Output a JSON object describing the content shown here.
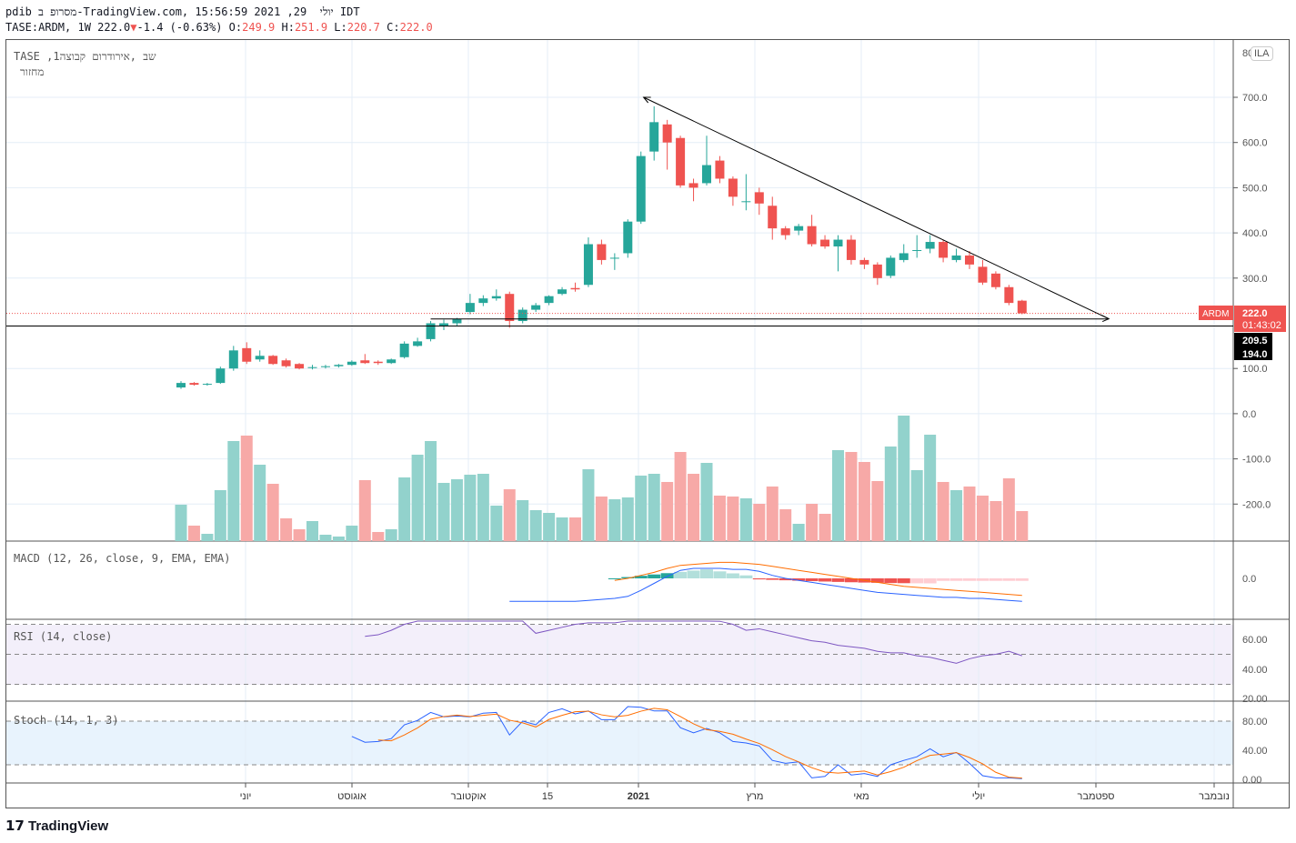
{
  "header": {
    "line1": "pdib מסרופ ב-TradingView.com, יולי  29, 2021 15:56:59 IDT",
    "symbol": "TASE:ARDM, 1W 222.0",
    "change": "-1.4 (-0.63%)",
    "o_label": "O:",
    "o": "249.9",
    "h_label": "H:",
    "h": "251.9",
    "l_label": "L:",
    "l": "220.7",
    "c_label": "C:",
    "c": "222.0"
  },
  "legend": {
    "title": "TASE ,1שב ,אירודרום קבוצה",
    "volume": "מחזור",
    "macd": "MACD (12, 26, close, 9, EMA, EMA)",
    "rsi": "RSI (14, close)",
    "stoch": "Stoch (14, 1, 3)"
  },
  "currency": "ILA",
  "price_tag": {
    "symbol": "ARDM",
    "price": "222.0",
    "countdown": "01:43:02",
    "level1": "209.5",
    "level2": "194.0"
  },
  "colors": {
    "up": "#26a69a",
    "down": "#ef5350",
    "macd": "#2962ff",
    "signal": "#ff6d00",
    "rsi": "#7e57c2",
    "stochK": "#2962ff",
    "stochD": "#ff6d00"
  },
  "logo": "TradingView",
  "chart_data": {
    "type": "candlestick",
    "price_ticks": [
      "700.0",
      "600.0",
      "500.0",
      "400.0",
      "300.0",
      "100.0",
      "0.0",
      "-100.0",
      "-200.0"
    ],
    "price_tick_values": [
      700,
      600,
      500,
      400,
      300,
      100,
      0,
      -100,
      -200
    ],
    "top_tick": "80",
    "macd_ticks": [
      "0.0"
    ],
    "rsi_ticks": [
      "60.00",
      "40.00",
      "20.00"
    ],
    "stoch_ticks": [
      "80.00",
      "40.00",
      "0.00"
    ],
    "x_labels": [
      "יוני",
      "אוגוסט",
      "אוקטובר",
      "15",
      "2021",
      "מרץ",
      "מאי",
      "יולי",
      "ספטמבר",
      "נובמבר"
    ],
    "ohlc": [
      [
        58,
        72,
        55,
        68
      ],
      [
        68,
        70,
        62,
        64
      ],
      [
        64,
        68,
        62,
        66
      ],
      [
        68,
        104,
        66,
        100
      ],
      [
        100,
        150,
        95,
        140
      ],
      [
        145,
        158,
        110,
        115
      ],
      [
        120,
        140,
        115,
        128
      ],
      [
        128,
        130,
        108,
        110
      ],
      [
        118,
        122,
        102,
        105
      ],
      [
        110,
        112,
        98,
        100
      ],
      [
        101,
        108,
        98,
        103
      ],
      [
        103,
        108,
        100,
        105
      ],
      [
        105,
        110,
        102,
        108
      ],
      [
        108,
        118,
        106,
        115
      ],
      [
        118,
        132,
        110,
        112
      ],
      [
        115,
        118,
        108,
        112
      ],
      [
        112,
        122,
        110,
        120
      ],
      [
        125,
        160,
        122,
        155
      ],
      [
        150,
        168,
        148,
        160
      ],
      [
        165,
        205,
        160,
        200
      ],
      [
        195,
        208,
        185,
        200
      ],
      [
        200,
        212,
        195,
        210
      ],
      [
        225,
        265,
        220,
        245
      ],
      [
        245,
        262,
        238,
        255
      ],
      [
        255,
        275,
        250,
        260
      ],
      [
        265,
        270,
        190,
        205
      ],
      [
        205,
        235,
        200,
        230
      ],
      [
        230,
        245,
        225,
        240
      ],
      [
        245,
        262,
        240,
        260
      ],
      [
        265,
        280,
        262,
        275
      ],
      [
        278,
        290,
        270,
        275
      ],
      [
        285,
        390,
        280,
        375
      ],
      [
        375,
        385,
        330,
        340
      ],
      [
        345,
        355,
        318,
        345
      ],
      [
        355,
        430,
        345,
        425
      ],
      [
        425,
        580,
        420,
        570
      ],
      [
        580,
        680,
        560,
        645
      ],
      [
        640,
        650,
        540,
        600
      ],
      [
        610,
        615,
        500,
        505
      ],
      [
        510,
        520,
        470,
        500
      ],
      [
        510,
        615,
        505,
        550
      ],
      [
        560,
        570,
        510,
        520
      ],
      [
        520,
        525,
        460,
        480
      ],
      [
        470,
        530,
        450,
        470
      ],
      [
        490,
        500,
        440,
        465
      ],
      [
        460,
        480,
        385,
        410
      ],
      [
        410,
        415,
        385,
        395
      ],
      [
        405,
        420,
        395,
        415
      ],
      [
        415,
        440,
        370,
        375
      ],
      [
        385,
        395,
        365,
        370
      ],
      [
        370,
        395,
        315,
        385
      ],
      [
        385,
        395,
        330,
        340
      ],
      [
        340,
        345,
        320,
        330
      ],
      [
        330,
        335,
        285,
        300
      ],
      [
        305,
        350,
        300,
        345
      ],
      [
        340,
        375,
        335,
        355
      ],
      [
        360,
        395,
        345,
        362
      ],
      [
        365,
        395,
        355,
        380
      ],
      [
        380,
        385,
        335,
        345
      ],
      [
        340,
        365,
        335,
        350
      ],
      [
        350,
        360,
        320,
        330
      ],
      [
        325,
        340,
        285,
        290
      ],
      [
        310,
        315,
        275,
        280
      ],
      [
        280,
        285,
        240,
        245
      ],
      [
        250,
        252,
        220,
        222
      ]
    ],
    "volume": [
      40,
      17,
      8,
      56,
      110,
      116,
      84,
      63,
      25,
      13,
      22,
      7,
      5,
      17,
      67,
      10,
      13,
      70,
      95,
      110,
      64,
      68,
      73,
      74,
      39,
      57,
      45,
      34,
      31,
      26,
      26,
      79,
      49,
      46,
      48,
      72,
      74,
      65,
      98,
      74,
      86,
      50,
      49,
      47,
      41,
      60,
      35,
      19,
      41,
      30,
      100,
      98,
      87,
      66,
      104,
      138,
      78,
      117,
      65,
      56,
      60,
      50,
      44,
      69,
      33
    ],
    "macd": {
      "start": 25,
      "line": [
        -23,
        -23,
        -23,
        -23,
        -23,
        -23,
        -22,
        -21,
        -20,
        -18,
        -12,
        -5,
        2,
        8,
        10,
        10,
        10,
        9,
        9,
        7,
        3,
        0,
        -2,
        -4,
        -6,
        -8,
        -10,
        -12,
        -14,
        -15,
        -16,
        -17,
        -18,
        -19,
        -19,
        -20,
        -20,
        -21,
        -22,
        -23
      ],
      "signal": [
        null,
        null,
        null,
        null,
        null,
        null,
        null,
        null,
        -2,
        0,
        3,
        6,
        10,
        13,
        14,
        15,
        16,
        16,
        15,
        14,
        12,
        10,
        8,
        6,
        4,
        2,
        0,
        -2,
        -4,
        -6,
        -8,
        -9,
        -10,
        -11,
        -12,
        -13,
        -14,
        -15,
        -16,
        -17
      ]
    },
    "rsi": {
      "start": 14,
      "values": [
        62,
        63,
        66,
        70,
        76,
        80,
        82,
        82,
        82,
        82,
        82,
        82,
        73,
        64,
        66,
        68,
        70,
        71,
        71,
        71,
        74,
        76,
        76,
        76,
        76,
        78,
        80,
        72,
        70,
        66,
        67,
        65,
        63,
        61,
        59,
        58,
        56,
        55,
        54,
        52,
        51,
        51,
        49,
        48,
        46,
        44,
        47,
        49,
        50,
        52,
        49
      ]
    },
    "stochK": {
      "start": 13,
      "values": [
        59,
        51,
        52,
        56,
        75,
        81,
        92,
        86,
        87,
        86,
        91,
        92,
        61,
        80,
        75,
        92,
        97,
        90,
        94,
        82,
        82,
        100,
        99,
        94,
        94,
        71,
        64,
        70,
        64,
        52,
        50,
        46,
        26,
        22,
        24,
        2,
        4,
        20,
        6,
        8,
        4,
        20,
        26,
        31,
        42,
        31,
        37,
        22,
        5,
        2,
        2,
        1
      ]
    },
    "drawings": {
      "trendline": {
        "from": [
          35.2,
          700
        ],
        "to": [
          70.6,
          210
        ]
      },
      "support": {
        "from": [
          19,
          209.5
        ],
        "to": [
          70.6,
          209.5
        ],
        "price": 209.5
      },
      "level": {
        "price": 194.0
      },
      "last_price": 222.0
    }
  }
}
